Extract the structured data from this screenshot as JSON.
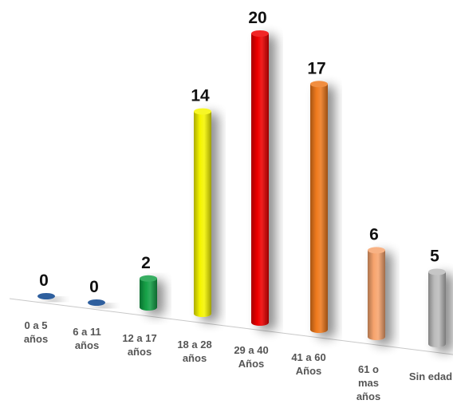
{
  "chart_data": {
    "type": "bar",
    "categories": [
      [
        "0 a 5",
        "años"
      ],
      [
        "6 a 11",
        "años"
      ],
      [
        "12 a 17",
        "años"
      ],
      [
        "18 a 28",
        "años"
      ],
      [
        "29 a 40",
        "Años"
      ],
      [
        "41 a 60",
        "Años"
      ],
      [
        "61 o",
        "mas",
        "años"
      ],
      [
        "Sin edad"
      ]
    ],
    "values": [
      0,
      0,
      2,
      14,
      20,
      17,
      6,
      5
    ],
    "colors": [
      "#2e5f9e",
      "#2e5f9e",
      "#14a046",
      "#f5f500",
      "#ee0000",
      "#ef7a1e",
      "#f7a46e",
      "#bcbcbc"
    ],
    "style": "3d-cylinder",
    "grid": false,
    "legend": "none",
    "title": "",
    "xlabel": "",
    "ylabel": ""
  }
}
